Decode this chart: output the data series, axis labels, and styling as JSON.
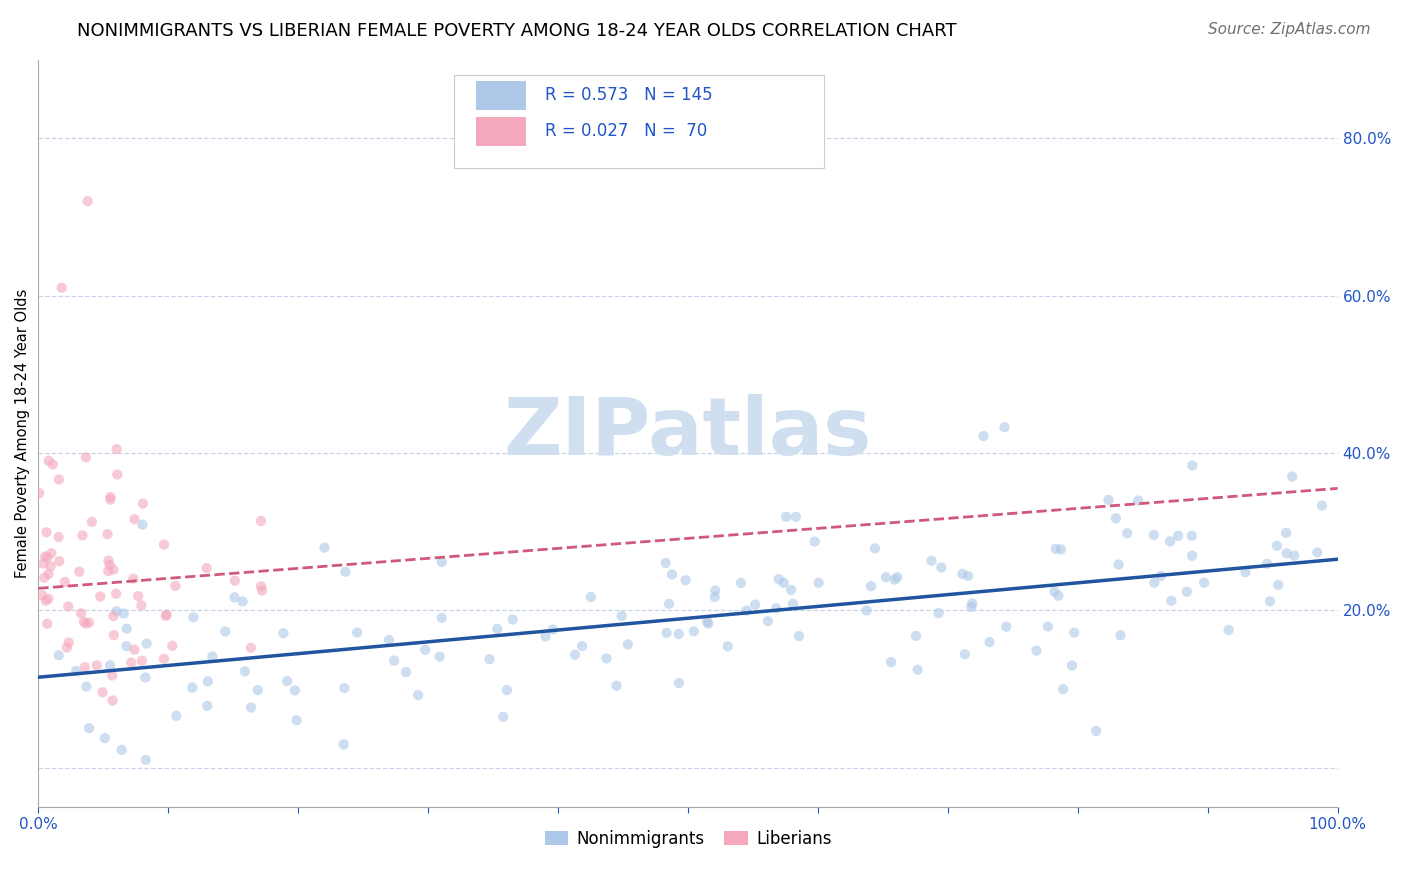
{
  "title": "NONIMMIGRANTS VS LIBERIAN FEMALE POVERTY AMONG 18-24 YEAR OLDS CORRELATION CHART",
  "source": "Source: ZipAtlas.com",
  "ylabel": "Female Poverty Among 18-24 Year Olds",
  "x_min": 0.0,
  "x_max": 1.0,
  "y_min": -0.05,
  "y_max": 0.9,
  "x_ticks": [
    0.0,
    0.1,
    0.2,
    0.3,
    0.4,
    0.5,
    0.6,
    0.7,
    0.8,
    0.9,
    1.0
  ],
  "x_tick_labels": [
    "0.0%",
    "",
    "",
    "",
    "",
    "",
    "",
    "",
    "",
    "",
    "100.0%"
  ],
  "y_ticks": [
    0.0,
    0.2,
    0.4,
    0.6,
    0.8
  ],
  "y_tick_labels": [
    "",
    "20.0%",
    "40.0%",
    "60.0%",
    "80.0%"
  ],
  "nonimmigrant_color": "#adc8e8",
  "liberian_color": "#f4a8bc",
  "nonimmigrant_line_color": "#2255a0",
  "liberian_line_color": "#d05878",
  "legend_text_color": "#2255c8",
  "R_nonimmigrant": 0.573,
  "N_nonimmigrant": 145,
  "R_liberian": 0.027,
  "N_liberian": 70,
  "watermark": "ZIPatlas",
  "watermark_color": "#d0dff0",
  "grid_color": "#c8d4e8",
  "title_fontsize": 13,
  "axis_label_fontsize": 10.5,
  "tick_label_fontsize": 11,
  "legend_fontsize": 12,
  "source_fontsize": 11,
  "scatter_size": 55,
  "scatter_alpha": 0.6,
  "non_line_y0": 0.115,
  "non_line_y1": 0.265,
  "lib_line_y0": 0.228,
  "lib_line_y1": 0.355
}
